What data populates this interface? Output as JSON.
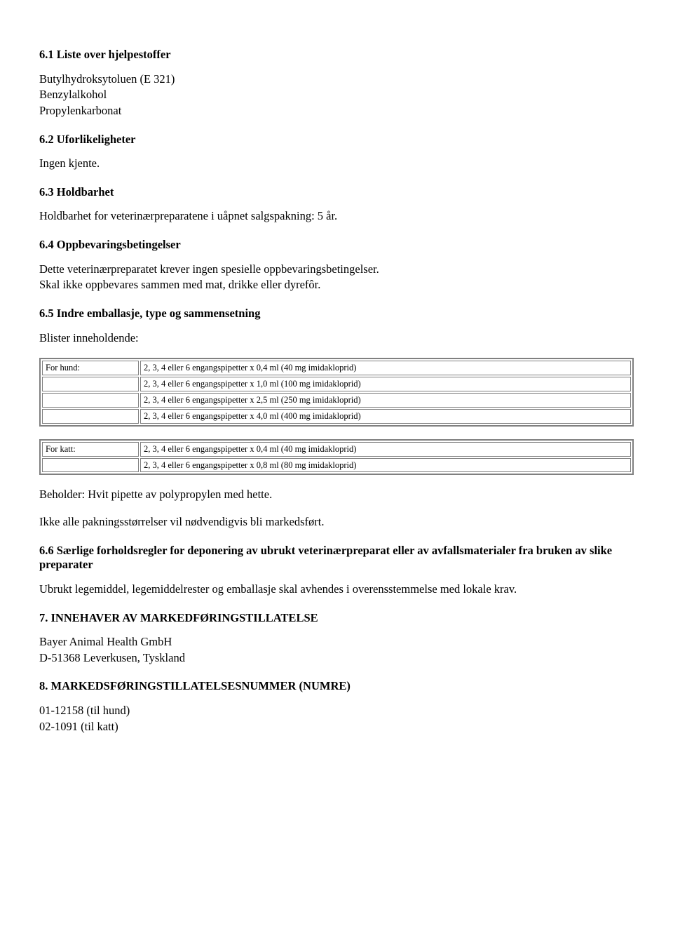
{
  "s61": {
    "heading": "6.1 Liste over hjelpestoffer",
    "lines": [
      "Butylhydroksytoluen  (E 321)",
      "Benzylalkohol",
      "Propylenkarbonat"
    ]
  },
  "s62": {
    "heading": "6.2 Uforlikeligheter",
    "text": "Ingen kjente."
  },
  "s63": {
    "heading": "6.3 Holdbarhet",
    "text": "Holdbarhet for veterinærpreparatene i uåpnet salgspakning: 5 år."
  },
  "s64": {
    "heading": "6.4 Oppbevaringsbetingelser",
    "lines": [
      "Dette veterinærpreparatet krever ingen spesielle oppbevaringsbetingelser.",
      "Skal ikke oppbevares sammen med mat, drikke eller dyrefôr."
    ]
  },
  "s65": {
    "heading": "6.5 Indre emballasje, type og sammensetning",
    "intro": "Blister inneholdende:",
    "table_hund": {
      "label": "For hund:",
      "rows": [
        "2, 3, 4 eller 6 engangspipetter x 0,4 ml (40 mg imidakloprid)",
        "2, 3, 4 eller 6 engangspipetter x 1,0 ml (100 mg imidakloprid)",
        "2, 3, 4 eller 6 engangspipetter x 2,5 ml (250 mg imidakloprid)",
        "2, 3, 4 eller 6 engangspipetter x 4,0 ml (400 mg imidakloprid)"
      ]
    },
    "table_katt": {
      "label": "For katt:",
      "rows": [
        "2, 3, 4 eller 6 engangspipetter x 0,4 ml (40 mg imidakloprid)",
        "2, 3, 4 eller 6 engangspipetter x 0,8 ml (80 mg imidakloprid)"
      ]
    },
    "after1": "Beholder: Hvit pipette av polypropylen med hette.",
    "after2": "Ikke alle pakningsstørrelser vil nødvendigvis bli markedsført."
  },
  "s66": {
    "heading": "6.6 Særlige forholdsregler for deponering av ubrukt veterinærpreparat eller av avfallsmaterialer fra bruken av slike preparater",
    "text": "Ubrukt legemiddel, legemiddelrester og emballasje skal avhendes i overensstemmelse med lokale krav."
  },
  "s7": {
    "heading": "7. INNEHAVER AV MARKEDFØRINGSTILLATELSE",
    "lines": [
      "Bayer Animal Health GmbH",
      "D-51368 Leverkusen, Tyskland"
    ]
  },
  "s8": {
    "heading": "8. MARKEDSFØRINGSTILLATELSESNUMMER (NUMRE)",
    "lines": [
      "01-12158 (til hund)",
      "02-1091 (til katt)"
    ]
  }
}
